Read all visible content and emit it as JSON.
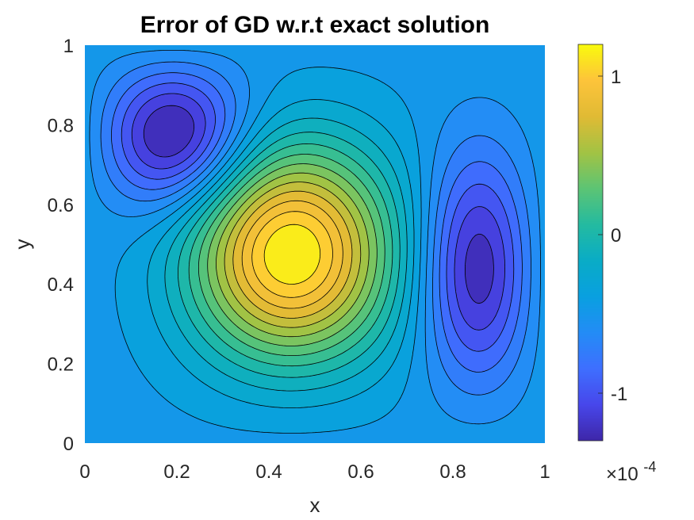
{
  "chart_data": {
    "type": "heatmap",
    "subtype": "filled-contour",
    "title": "Error of GD w.r.t exact solution",
    "xlabel": "x",
    "ylabel": "y",
    "xlim": [
      0,
      1
    ],
    "ylim": [
      0,
      1
    ],
    "xticks": [
      0,
      0.2,
      0.4,
      0.6,
      0.8,
      1
    ],
    "yticks": [
      0,
      0.2,
      0.4,
      0.6,
      0.8,
      1
    ],
    "xtick_labels": [
      "0",
      "0.2",
      "0.4",
      "0.6",
      "0.8",
      "1"
    ],
    "ytick_labels": [
      "0",
      "0.2",
      "0.4",
      "0.6",
      "0.8",
      "1"
    ],
    "colormap": "parula",
    "colorbar": {
      "range": [
        -0.00013,
        0.00012
      ],
      "ticks": [
        -1,
        0,
        1
      ],
      "tick_labels": [
        "-1",
        "0",
        "1"
      ],
      "exponent_label": "×10",
      "exponent_power": "-4"
    },
    "contour_levels": 20,
    "extrema": [
      {
        "x": 0.16,
        "y": 0.81,
        "value": -0.00013,
        "kind": "min"
      },
      {
        "x": 0.44,
        "y": 0.47,
        "value": 0.00012,
        "kind": "max"
      },
      {
        "x": 0.88,
        "y": 0.42,
        "value": -0.0001,
        "kind": "min"
      }
    ]
  }
}
